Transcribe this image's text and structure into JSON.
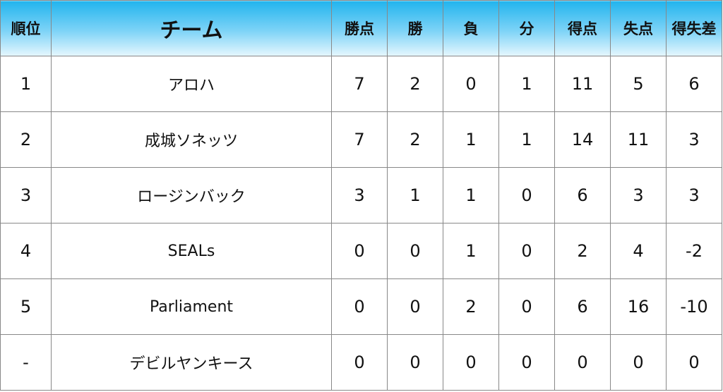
{
  "table": {
    "columns": [
      "順位",
      "チーム",
      "勝点",
      "勝",
      "負",
      "分",
      "得点",
      "失点",
      "得失差"
    ],
    "rows": [
      [
        "1",
        "アロハ",
        "7",
        "2",
        "0",
        "1",
        "11",
        "5",
        "6"
      ],
      [
        "2",
        "成城ソネッツ",
        "7",
        "2",
        "1",
        "1",
        "14",
        "11",
        "3"
      ],
      [
        "3",
        "ロージンバック",
        "3",
        "1",
        "1",
        "0",
        "6",
        "3",
        "3"
      ],
      [
        "4",
        "SEALs",
        "0",
        "0",
        "1",
        "0",
        "2",
        "4",
        "-2"
      ],
      [
        "5",
        "Parliament",
        "0",
        "0",
        "2",
        "0",
        "6",
        "16",
        "-10"
      ],
      [
        "-",
        "デビルヤンキース",
        "0",
        "0",
        "0",
        "0",
        "0",
        "0",
        "0"
      ]
    ]
  }
}
